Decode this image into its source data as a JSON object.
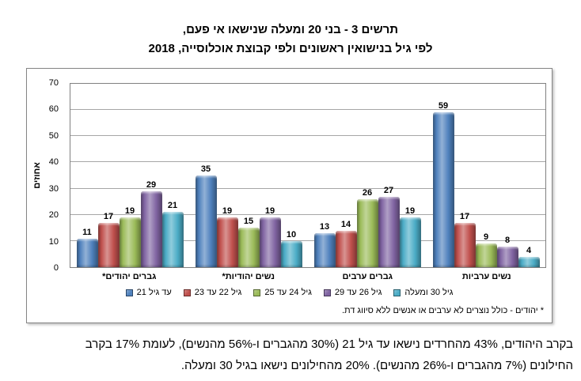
{
  "title": {
    "line1": "תרשים 3 - בני 20 ומעלה שנישאו אי פעם,",
    "line2": "לפי גיל בנישואין ראשונים ולפי קבוצת אוכלוסייה, 2018"
  },
  "chart_data": {
    "type": "bar",
    "title": "תרשים 3 - בני 20 ומעלה שנישאו אי פעם, לפי גיל בנישואין ראשונים ולפי קבוצת אוכלוסייה, 2018",
    "xlabel": "",
    "ylabel": "אחוזים",
    "ylim": [
      0,
      70
    ],
    "yticks": [
      0,
      10,
      20,
      30,
      40,
      50,
      60,
      70
    ],
    "grid": true,
    "legend_position": "bottom",
    "categories": [
      "גברים יהודים*",
      "נשים יהודיות*",
      "גברים ערבים",
      "נשים ערביות"
    ],
    "series": [
      {
        "name": "עד גיל 21",
        "color": "#4f81bd",
        "values": [
          11,
          35,
          13,
          59
        ]
      },
      {
        "name": "גיל 22 עד 23",
        "color": "#c0504d",
        "values": [
          17,
          19,
          14,
          17
        ]
      },
      {
        "name": "גיל 24 עד 25",
        "color": "#9bbb59",
        "values": [
          19,
          15,
          26,
          9
        ]
      },
      {
        "name": "גיל 26 עד 29",
        "color": "#8064a2",
        "values": [
          29,
          19,
          27,
          8
        ]
      },
      {
        "name": "גיל 30 ומעלה",
        "color": "#4bacc6",
        "values": [
          21,
          10,
          19,
          4
        ]
      }
    ]
  },
  "footnote": "* יהודים - כולל נוצרים לא ערבים או אנשים ללא סיווג דת.",
  "paragraph": {
    "line1": "בקרב היהודים, 43% מהחרדים נישאו עד גיל 21 (30% מהגברים ו-56% מהנשים), לעומת 17% בקרב",
    "line2": "החילונים (7% מהגברים ו-26% מהנשים). 20% מהחילונים נישאו בגיל 30 ומעלה."
  }
}
